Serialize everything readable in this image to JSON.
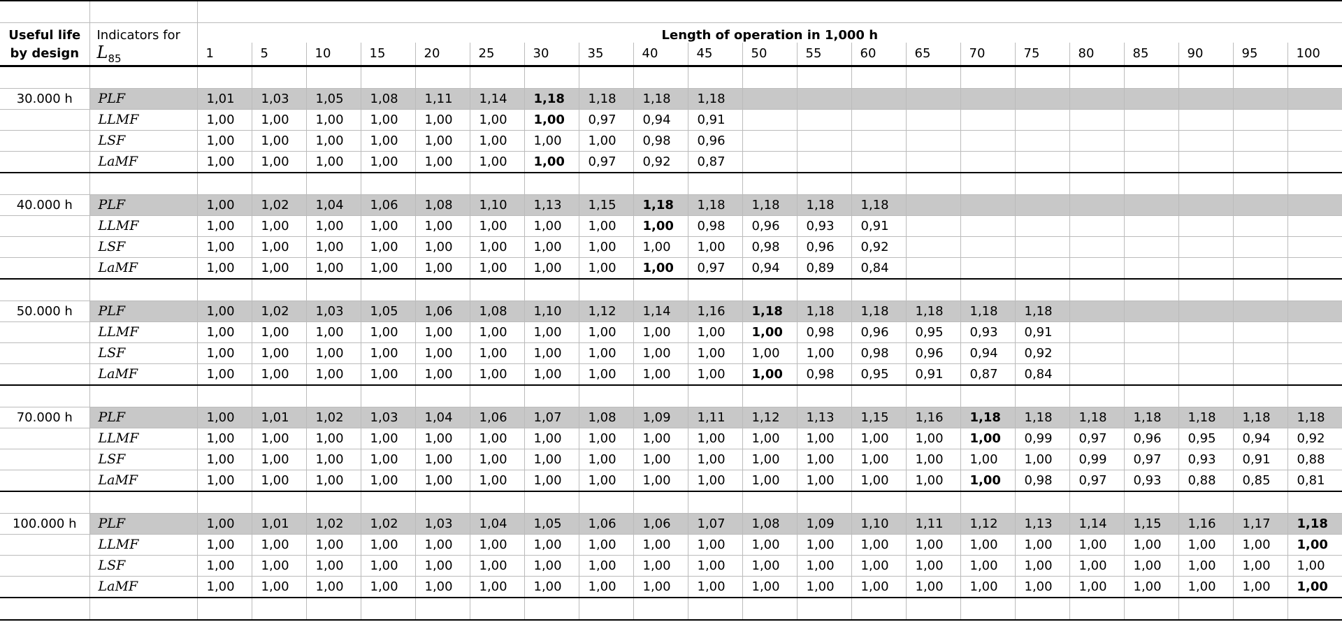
{
  "header": {
    "useful_life_line1": "Useful life",
    "useful_life_line2": "by design",
    "indicators_line1": "Indicators for",
    "indicator_symbol": "L",
    "indicator_subscript": "85",
    "length_title": "Length of operation in 1,000 h",
    "columns": [
      "1",
      "5",
      "10",
      "15",
      "20",
      "25",
      "30",
      "35",
      "40",
      "45",
      "50",
      "55",
      "60",
      "65",
      "70",
      "75",
      "80",
      "85",
      "90",
      "95",
      "100"
    ]
  },
  "groups": [
    {
      "life": "30.000 h",
      "bold_index": 6,
      "rows": [
        {
          "label": "PLF",
          "values": [
            "1,01",
            "1,03",
            "1,05",
            "1,08",
            "1,11",
            "1,14",
            "1,18",
            "1,18",
            "1,18",
            "1,18"
          ]
        },
        {
          "label": "LLMF",
          "values": [
            "1,00",
            "1,00",
            "1,00",
            "1,00",
            "1,00",
            "1,00",
            "1,00",
            "0,97",
            "0,94",
            "0,91"
          ]
        },
        {
          "label": "LSF",
          "values": [
            "1,00",
            "1,00",
            "1,00",
            "1,00",
            "1,00",
            "1,00",
            "1,00",
            "1,00",
            "0,98",
            "0,96"
          ]
        },
        {
          "label": "LaMF",
          "values": [
            "1,00",
            "1,00",
            "1,00",
            "1,00",
            "1,00",
            "1,00",
            "1,00",
            "0,97",
            "0,92",
            "0,87"
          ]
        }
      ]
    },
    {
      "life": "40.000 h",
      "bold_index": 8,
      "rows": [
        {
          "label": "PLF",
          "values": [
            "1,00",
            "1,02",
            "1,04",
            "1,06",
            "1,08",
            "1,10",
            "1,13",
            "1,15",
            "1,18",
            "1,18",
            "1,18",
            "1,18",
            "1,18"
          ]
        },
        {
          "label": "LLMF",
          "values": [
            "1,00",
            "1,00",
            "1,00",
            "1,00",
            "1,00",
            "1,00",
            "1,00",
            "1,00",
            "1,00",
            "0,98",
            "0,96",
            "0,93",
            "0,91"
          ]
        },
        {
          "label": "LSF",
          "values": [
            "1,00",
            "1,00",
            "1,00",
            "1,00",
            "1,00",
            "1,00",
            "1,00",
            "1,00",
            "1,00",
            "1,00",
            "0,98",
            "0,96",
            "0,92"
          ]
        },
        {
          "label": "LaMF",
          "values": [
            "1,00",
            "1,00",
            "1,00",
            "1,00",
            "1,00",
            "1,00",
            "1,00",
            "1,00",
            "1,00",
            "0,97",
            "0,94",
            "0,89",
            "0,84"
          ]
        }
      ]
    },
    {
      "life": "50.000 h",
      "bold_index": 10,
      "rows": [
        {
          "label": "PLF",
          "values": [
            "1,00",
            "1,02",
            "1,03",
            "1,05",
            "1,06",
            "1,08",
            "1,10",
            "1,12",
            "1,14",
            "1,16",
            "1,18",
            "1,18",
            "1,18",
            "1,18",
            "1,18",
            "1,18"
          ]
        },
        {
          "label": "LLMF",
          "values": [
            "1,00",
            "1,00",
            "1,00",
            "1,00",
            "1,00",
            "1,00",
            "1,00",
            "1,00",
            "1,00",
            "1,00",
            "1,00",
            "0,98",
            "0,96",
            "0,95",
            "0,93",
            "0,91"
          ]
        },
        {
          "label": "LSF",
          "values": [
            "1,00",
            "1,00",
            "1,00",
            "1,00",
            "1,00",
            "1,00",
            "1,00",
            "1,00",
            "1,00",
            "1,00",
            "1,00",
            "1,00",
            "0,98",
            "0,96",
            "0,94",
            "0,92"
          ]
        },
        {
          "label": "LaMF",
          "values": [
            "1,00",
            "1,00",
            "1,00",
            "1,00",
            "1,00",
            "1,00",
            "1,00",
            "1,00",
            "1,00",
            "1,00",
            "1,00",
            "0,98",
            "0,95",
            "0,91",
            "0,87",
            "0,84"
          ]
        }
      ]
    },
    {
      "life": "70.000 h",
      "bold_index": 14,
      "rows": [
        {
          "label": "PLF",
          "values": [
            "1,00",
            "1,01",
            "1,02",
            "1,03",
            "1,04",
            "1,06",
            "1,07",
            "1,08",
            "1,09",
            "1,11",
            "1,12",
            "1,13",
            "1,15",
            "1,16",
            "1,18",
            "1,18",
            "1,18",
            "1,18",
            "1,18",
            "1,18",
            "1,18"
          ]
        },
        {
          "label": "LLMF",
          "values": [
            "1,00",
            "1,00",
            "1,00",
            "1,00",
            "1,00",
            "1,00",
            "1,00",
            "1,00",
            "1,00",
            "1,00",
            "1,00",
            "1,00",
            "1,00",
            "1,00",
            "1,00",
            "0,99",
            "0,97",
            "0,96",
            "0,95",
            "0,94",
            "0,92"
          ]
        },
        {
          "label": "LSF",
          "values": [
            "1,00",
            "1,00",
            "1,00",
            "1,00",
            "1,00",
            "1,00",
            "1,00",
            "1,00",
            "1,00",
            "1,00",
            "1,00",
            "1,00",
            "1,00",
            "1,00",
            "1,00",
            "1,00",
            "0,99",
            "0,97",
            "0,93",
            "0,91",
            "0,88"
          ]
        },
        {
          "label": "LaMF",
          "values": [
            "1,00",
            "1,00",
            "1,00",
            "1,00",
            "1,00",
            "1,00",
            "1,00",
            "1,00",
            "1,00",
            "1,00",
            "1,00",
            "1,00",
            "1,00",
            "1,00",
            "1,00",
            "0,98",
            "0,97",
            "0,93",
            "0,88",
            "0,85",
            "0,81"
          ]
        }
      ]
    },
    {
      "life": "100.000 h",
      "bold_index": 20,
      "rows": [
        {
          "label": "PLF",
          "values": [
            "1,00",
            "1,01",
            "1,02",
            "1,02",
            "1,03",
            "1,04",
            "1,05",
            "1,06",
            "1,06",
            "1,07",
            "1,08",
            "1,09",
            "1,10",
            "1,11",
            "1,12",
            "1,13",
            "1,14",
            "1,15",
            "1,16",
            "1,17",
            "1,18"
          ]
        },
        {
          "label": "LLMF",
          "values": [
            "1,00",
            "1,00",
            "1,00",
            "1,00",
            "1,00",
            "1,00",
            "1,00",
            "1,00",
            "1,00",
            "1,00",
            "1,00",
            "1,00",
            "1,00",
            "1,00",
            "1,00",
            "1,00",
            "1,00",
            "1,00",
            "1,00",
            "1,00",
            "1,00"
          ]
        },
        {
          "label": "LSF",
          "values": [
            "1,00",
            "1,00",
            "1,00",
            "1,00",
            "1,00",
            "1,00",
            "1,00",
            "1,00",
            "1,00",
            "1,00",
            "1,00",
            "1,00",
            "1,00",
            "1,00",
            "1,00",
            "1,00",
            "1,00",
            "1,00",
            "1,00",
            "1,00",
            "1,00"
          ]
        },
        {
          "label": "LaMF",
          "values": [
            "1,00",
            "1,00",
            "1,00",
            "1,00",
            "1,00",
            "1,00",
            "1,00",
            "1,00",
            "1,00",
            "1,00",
            "1,00",
            "1,00",
            "1,00",
            "1,00",
            "1,00",
            "1,00",
            "1,00",
            "1,00",
            "1,00",
            "1,00",
            "1,00"
          ]
        }
      ]
    }
  ],
  "colors": {
    "highlight_row": "#c8c8c8",
    "grid": "#bbbbbb",
    "rule": "#000000"
  }
}
